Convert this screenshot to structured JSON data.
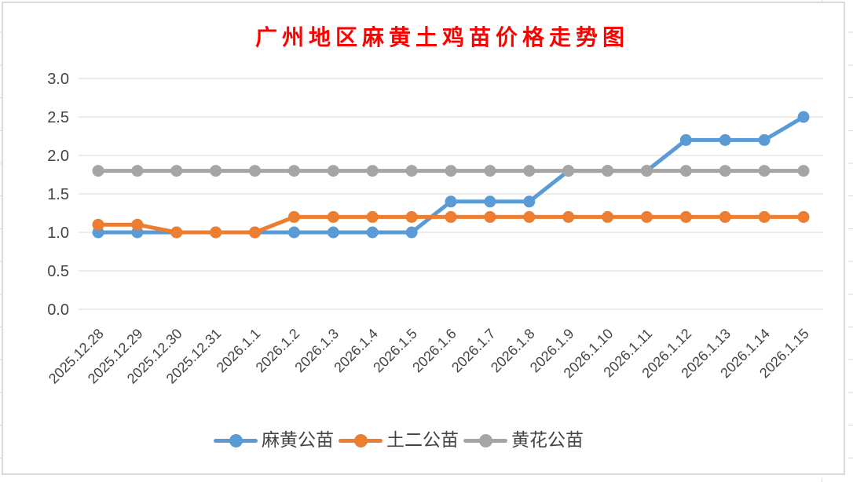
{
  "chart_data": {
    "type": "line",
    "title": "广州地区麻黄土鸡苗价格走势图",
    "title_color": "#FF0000",
    "xlabel": "",
    "ylabel": "",
    "categories": [
      "2025.12.28",
      "2025.12.29",
      "2025.12.30",
      "2025.12.31",
      "2026.1.1",
      "2026.1.2",
      "2026.1.3",
      "2026.1.4",
      "2026.1.5",
      "2026.1.6",
      "2026.1.7",
      "2026.1.8",
      "2026.1.9",
      "2026.1.10",
      "2026.1.11",
      "2026.1.12",
      "2026.1.13",
      "2026.1.14",
      "2026.1.15"
    ],
    "series": [
      {
        "name": "麻黄公苗",
        "color": "#5B9BD5",
        "values": [
          1.0,
          1.0,
          1.0,
          1.0,
          1.0,
          1.0,
          1.0,
          1.0,
          1.0,
          1.4,
          1.4,
          1.4,
          1.8,
          1.8,
          1.8,
          2.2,
          2.2,
          2.2,
          2.5
        ]
      },
      {
        "name": "土二公苗",
        "color": "#ED7D31",
        "values": [
          1.1,
          1.1,
          1.0,
          1.0,
          1.0,
          1.2,
          1.2,
          1.2,
          1.2,
          1.2,
          1.2,
          1.2,
          1.2,
          1.2,
          1.2,
          1.2,
          1.2,
          1.2,
          1.2
        ]
      },
      {
        "name": "黄花公苗",
        "color": "#A5A5A5",
        "values": [
          1.8,
          1.8,
          1.8,
          1.8,
          1.8,
          1.8,
          1.8,
          1.8,
          1.8,
          1.8,
          1.8,
          1.8,
          1.8,
          1.8,
          1.8,
          1.8,
          1.8,
          1.8,
          1.8
        ]
      }
    ],
    "y_ticks": [
      "0.0",
      "0.5",
      "1.0",
      "1.5",
      "2.0",
      "2.5",
      "3.0"
    ],
    "ylim": [
      0.0,
      3.0
    ],
    "grid": true,
    "gridline_color": "#D9D9D9",
    "axis_label_color": "#454545",
    "marker": "circle",
    "legend_position": "bottom"
  }
}
